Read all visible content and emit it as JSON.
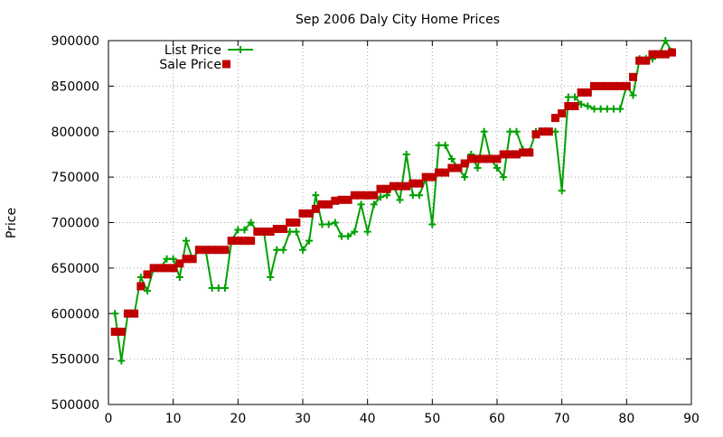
{
  "chart_data": {
    "type": "line",
    "title": "Sep 2006 Daly City Home Prices",
    "xlabel": "",
    "ylabel": "Price",
    "xlim": [
      0,
      90
    ],
    "ylim": [
      500000,
      900000
    ],
    "x_ticks": [
      "0",
      "10",
      "20",
      "30",
      "40",
      "50",
      "60",
      "70",
      "80",
      "90"
    ],
    "y_ticks": [
      "500000",
      "550000",
      "600000",
      "650000",
      "700000",
      "750000",
      "800000",
      "850000",
      "900000"
    ],
    "grid": true,
    "legend_position": "top-left",
    "series": [
      {
        "name": "List Price",
        "style": "linespoints",
        "color": "#00a000",
        "x": [
          1,
          2,
          3,
          4,
          5,
          6,
          7,
          8,
          9,
          10,
          11,
          12,
          13,
          14,
          15,
          16,
          17,
          18,
          19,
          20,
          21,
          22,
          23,
          24,
          25,
          26,
          27,
          28,
          29,
          30,
          31,
          32,
          33,
          34,
          35,
          36,
          37,
          38,
          39,
          40,
          41,
          42,
          43,
          44,
          45,
          46,
          47,
          48,
          49,
          50,
          51,
          52,
          53,
          54,
          55,
          56,
          57,
          58,
          59,
          60,
          61,
          62,
          63,
          64,
          65,
          66,
          67,
          68,
          69,
          70,
          71,
          72,
          73,
          74,
          75,
          76,
          77,
          78,
          79,
          80,
          81,
          82,
          83,
          84,
          85,
          86,
          87
        ],
        "values": [
          600000,
          548000,
          600000,
          600000,
          640000,
          625000,
          650000,
          650000,
          660000,
          660000,
          640000,
          680000,
          660000,
          670000,
          670000,
          628000,
          628000,
          628000,
          680000,
          692000,
          692000,
          700000,
          690000,
          690000,
          640000,
          670000,
          670000,
          690000,
          690000,
          670000,
          680000,
          730000,
          698000,
          698000,
          700000,
          685000,
          685000,
          690000,
          720000,
          690000,
          720000,
          728000,
          730000,
          740000,
          725000,
          775000,
          730000,
          730000,
          748000,
          698000,
          785000,
          785000,
          770000,
          760000,
          750000,
          775000,
          760000,
          800000,
          770000,
          760000,
          750000,
          800000,
          800000,
          780000,
          778000,
          800000,
          800000,
          800000,
          800000,
          735000,
          838000,
          838000,
          830000,
          828000,
          825000,
          825000,
          825000,
          825000,
          825000,
          850000,
          840000,
          880000,
          880000,
          880000,
          885000,
          900000,
          888000
        ]
      },
      {
        "name": "Sale Price",
        "style": "points",
        "color": "#c00000",
        "x": [
          1,
          2,
          3,
          4,
          5,
          6,
          7,
          8,
          9,
          10,
          11,
          12,
          13,
          14,
          15,
          16,
          17,
          18,
          19,
          20,
          21,
          22,
          23,
          24,
          25,
          26,
          27,
          28,
          29,
          30,
          31,
          32,
          33,
          34,
          35,
          36,
          37,
          38,
          39,
          40,
          41,
          42,
          43,
          44,
          45,
          46,
          47,
          48,
          49,
          50,
          51,
          52,
          53,
          54,
          55,
          56,
          57,
          58,
          59,
          60,
          61,
          62,
          63,
          64,
          65,
          66,
          67,
          68,
          69,
          70,
          71,
          72,
          73,
          74,
          75,
          76,
          77,
          78,
          79,
          80,
          81,
          82,
          83,
          84,
          85,
          86,
          87
        ],
        "values": [
          580000,
          580000,
          600000,
          600000,
          630000,
          643000,
          650000,
          650000,
          650000,
          650000,
          655000,
          660000,
          660000,
          670000,
          670000,
          670000,
          670000,
          670000,
          680000,
          680000,
          680000,
          680000,
          690000,
          690000,
          690000,
          693000,
          693000,
          700000,
          700000,
          710000,
          710000,
          715000,
          720000,
          720000,
          724000,
          725000,
          725000,
          730000,
          730000,
          730000,
          730000,
          737000,
          737000,
          740000,
          740000,
          740000,
          743000,
          743000,
          750000,
          750000,
          755000,
          755000,
          760000,
          760000,
          765000,
          770000,
          770000,
          770000,
          770000,
          770000,
          775000,
          775000,
          775000,
          777000,
          777000,
          797000,
          800000,
          800000,
          815000,
          820000,
          828000,
          828000,
          843000,
          843000,
          850000,
          850000,
          850000,
          850000,
          850000,
          850000,
          860000,
          878000,
          878000,
          885000,
          885000,
          885000,
          887000
        ]
      }
    ]
  }
}
